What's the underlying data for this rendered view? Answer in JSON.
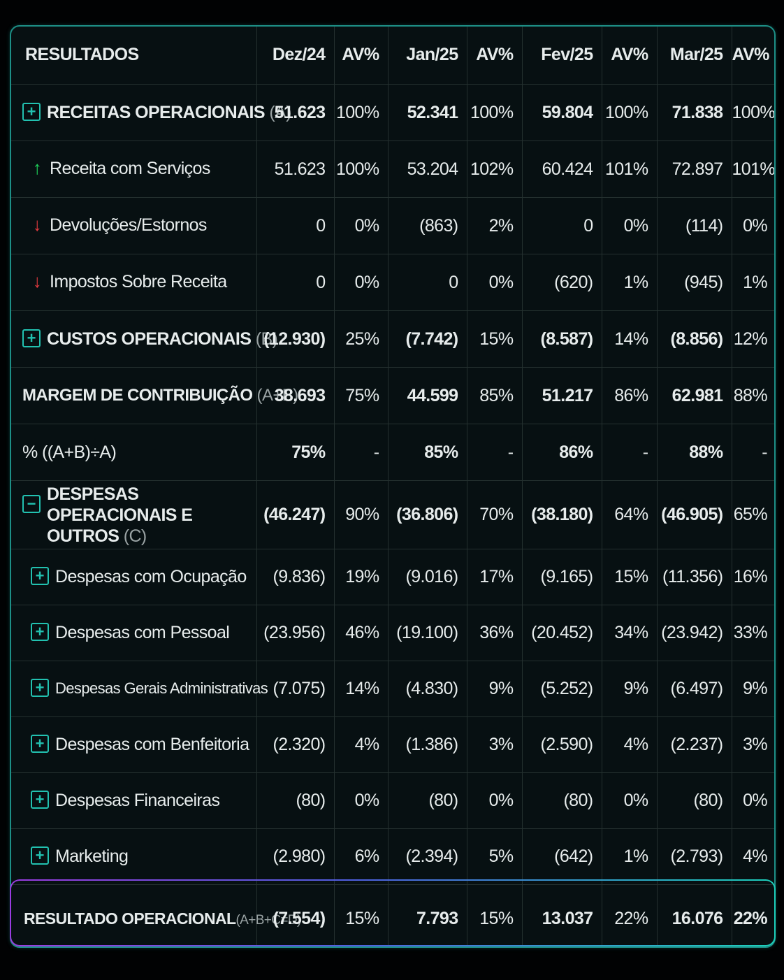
{
  "header": {
    "title": "RESULTADOS",
    "columns": [
      "Dez/24",
      "AV%",
      "Jan/25",
      "AV%",
      "Fev/25",
      "AV%",
      "Mar/25",
      "AV%"
    ]
  },
  "rows": {
    "receitas": {
      "label": "RECEITAS OPERACIONAIS",
      "suffix": "(A)",
      "icon": "plus-box-icon",
      "values": [
        "51.623",
        "100%",
        "52.341",
        "100%",
        "59.804",
        "100%",
        "71.838",
        "100%"
      ]
    },
    "servicos": {
      "label": "Receita com Serviços",
      "icon": "arrow-up-icon",
      "values": [
        "51.623",
        "100%",
        "53.204",
        "102%",
        "60.424",
        "101%",
        "72.897",
        "101%"
      ]
    },
    "devolucoes": {
      "label": "Devoluções/Estornos",
      "icon": "arrow-down-icon",
      "values": [
        "0",
        "0%",
        "(863)",
        "2%",
        "0",
        "0%",
        "(114)",
        "0%"
      ]
    },
    "impostos": {
      "label": "Impostos Sobre Receita",
      "icon": "arrow-down-icon",
      "values": [
        "0",
        "0%",
        "0",
        "0%",
        "(620)",
        "1%",
        "(945)",
        "1%"
      ]
    },
    "custos": {
      "label": "CUSTOS OPERACIONAIS",
      "suffix": "(B)",
      "icon": "plus-box-icon",
      "values": [
        "(12.930)",
        "25%",
        "(7.742)",
        "15%",
        "(8.587)",
        "14%",
        "(8.856)",
        "12%"
      ]
    },
    "margem": {
      "label": "MARGEM DE CONTRIBUIÇÃO",
      "suffix": "(A+B)",
      "values": [
        "38.693",
        "75%",
        "44.599",
        "85%",
        "51.217",
        "86%",
        "62.981",
        "88%"
      ]
    },
    "pct": {
      "label": "% ((A+B)÷A)",
      "values": [
        "75%",
        "-",
        "85%",
        "-",
        "86%",
        "-",
        "88%",
        "-"
      ]
    },
    "despesas": {
      "label": "DESPESAS OPERACIONAIS E OUTROS",
      "suffix": "(C)",
      "icon": "minus-box-icon",
      "values": [
        "(46.247)",
        "90%",
        "(36.806)",
        "70%",
        "(38.180)",
        "64%",
        "(46.905)",
        "65%"
      ]
    },
    "ocupacao": {
      "label": "Despesas com Ocupação",
      "icon": "plus-box-icon",
      "values": [
        "(9.836)",
        "19%",
        "(9.016)",
        "17%",
        "(9.165)",
        "15%",
        "(11.356)",
        "16%"
      ]
    },
    "pessoal": {
      "label": "Despesas com Pessoal",
      "icon": "plus-box-icon",
      "values": [
        "(23.956)",
        "46%",
        "(19.100)",
        "36%",
        "(20.452)",
        "34%",
        "(23.942)",
        "33%"
      ]
    },
    "gerais": {
      "label": "Despesas Gerais Administrativas",
      "icon": "plus-box-icon",
      "values": [
        "(7.075)",
        "14%",
        "(4.830)",
        "9%",
        "(5.252)",
        "9%",
        "(6.497)",
        "9%"
      ]
    },
    "benfeitoria": {
      "label": "Despesas com Benfeitoria",
      "icon": "plus-box-icon",
      "values": [
        "(2.320)",
        "4%",
        "(1.386)",
        "3%",
        "(2.590)",
        "4%",
        "(2.237)",
        "3%"
      ]
    },
    "financeiras": {
      "label": "Despesas Financeiras",
      "icon": "plus-box-icon",
      "values": [
        "(80)",
        "0%",
        "(80)",
        "0%",
        "(80)",
        "0%",
        "(80)",
        "0%"
      ]
    },
    "marketing": {
      "label": "Marketing",
      "icon": "plus-box-icon",
      "values": [
        "(2.980)",
        "6%",
        "(2.394)",
        "5%",
        "(642)",
        "1%",
        "(2.793)",
        "4%"
      ]
    },
    "resultado": {
      "label": "RESULTADO OPERACIONAL",
      "suffix": "(A+B+C=D)",
      "values": [
        "(7.554)",
        "15%",
        "7.793",
        "15%",
        "13.037",
        "22%",
        "16.076",
        "22%"
      ]
    }
  },
  "colors": {
    "accent": "#22c1b0",
    "negative": "#e23a3f",
    "positive_arrow": "#1fd45b",
    "highlight": "#27e0c6"
  }
}
